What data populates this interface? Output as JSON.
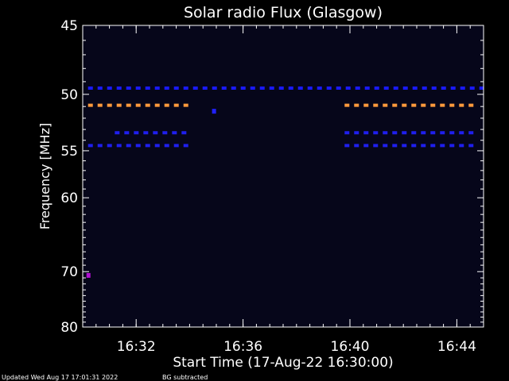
{
  "chart_data": {
    "type": "heatmap",
    "title": "Solar radio Flux (Glasgow)",
    "xlabel": "Start Time (17-Aug-22 16:30:00)",
    "ylabel": "Frequency [MHz]",
    "x_range_minutes": [
      0,
      15
    ],
    "xticks": [
      {
        "label": "16:32",
        "minute": 2
      },
      {
        "label": "16:36",
        "minute": 6
      },
      {
        "label": "16:40",
        "minute": 10
      },
      {
        "label": "16:44",
        "minute": 14
      }
    ],
    "y_range_mhz": [
      80,
      45
    ],
    "yticks": [
      45,
      50,
      55,
      60,
      70,
      80
    ],
    "yscale": "reciprocal",
    "background_color": "#06061a",
    "bands": [
      {
        "freq_mhz": 49.5,
        "start_min": 0.2,
        "end_min": 15,
        "color": "#1a1aff"
      },
      {
        "freq_mhz": 50.9,
        "start_min": 0.2,
        "end_min": 4.0,
        "color": "#ff9a3c"
      },
      {
        "freq_mhz": 50.9,
        "start_min": 9.8,
        "end_min": 14.8,
        "color": "#ff9a3c"
      },
      {
        "freq_mhz": 53.3,
        "start_min": 1.2,
        "end_min": 4.0,
        "color": "#1f1fee"
      },
      {
        "freq_mhz": 53.3,
        "start_min": 9.8,
        "end_min": 14.8,
        "color": "#1f1fee"
      },
      {
        "freq_mhz": 54.5,
        "start_min": 0.2,
        "end_min": 4.0,
        "color": "#1f1fee"
      },
      {
        "freq_mhz": 54.5,
        "start_min": 9.8,
        "end_min": 14.8,
        "color": "#1f1fee"
      }
    ],
    "spots": [
      {
        "freq_mhz": 70.6,
        "minute": 0.2,
        "color": "#b010d0"
      },
      {
        "freq_mhz": 51.4,
        "minute": 4.9,
        "color": "#2020ff"
      }
    ]
  },
  "footer": {
    "updated": "Updated Wed Aug 17 17:01:31 2022",
    "note": "BG subtracted"
  }
}
